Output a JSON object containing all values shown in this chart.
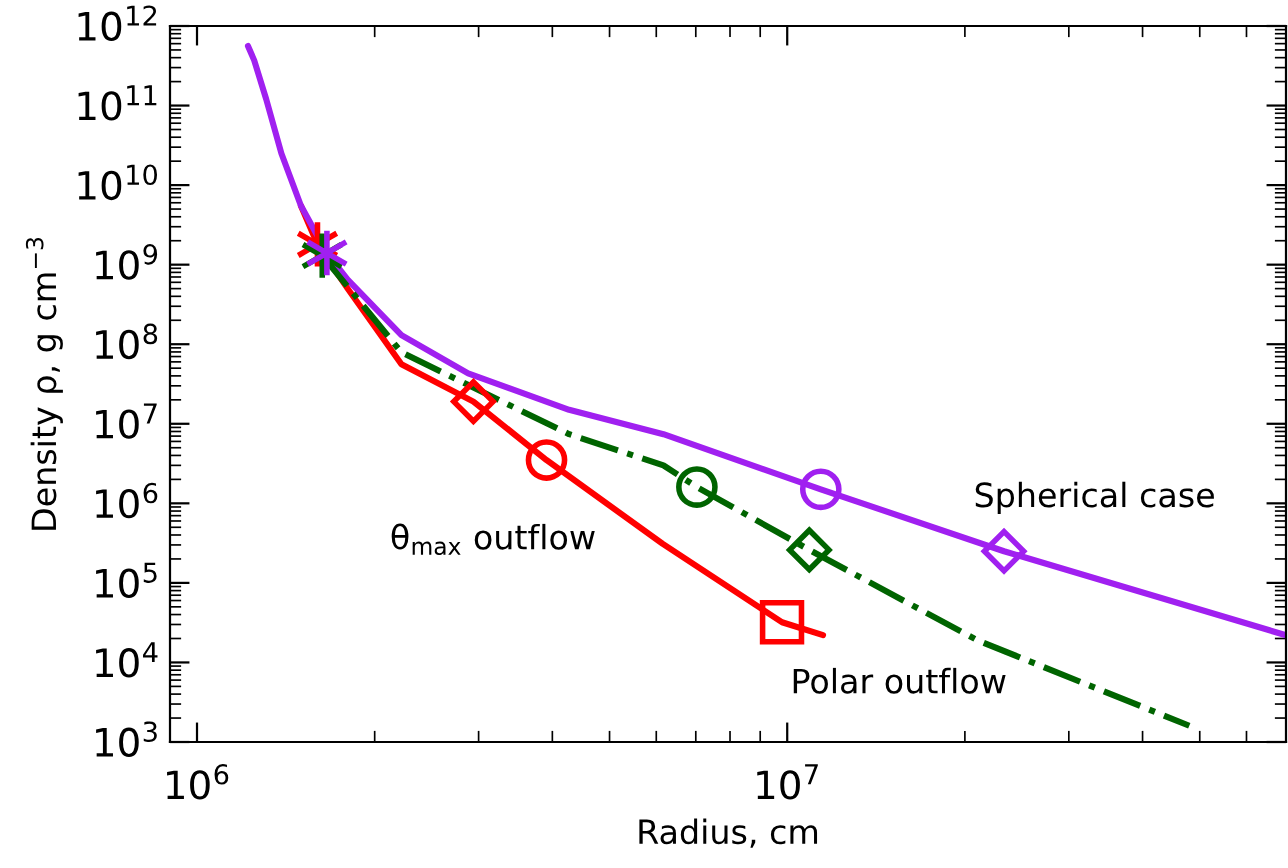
{
  "chart_data": {
    "type": "line",
    "xlabel": "Radius, cm",
    "ylabel": "Density ρ, g cm$^{−3}$",
    "log": "xy",
    "grid": false,
    "legend": false,
    "xlim": [
      900000,
      70000000
    ],
    "ylim": [
      1000,
      1000000000000
    ],
    "xticks": [
      {
        "value": 1000000,
        "label": "10$^{6}$"
      },
      {
        "value": 10000000,
        "label": "10$^{7}$"
      }
    ],
    "yticks": [
      {
        "value": 1000,
        "label": "10$^{3}$"
      },
      {
        "value": 10000,
        "label": "10$^{4}$"
      },
      {
        "value": 100000,
        "label": "10$^{5}$"
      },
      {
        "value": 1000000,
        "label": "10$^{6}$"
      },
      {
        "value": 10000000,
        "label": "10$^{7}$"
      },
      {
        "value": 100000000,
        "label": "10$^{8}$"
      },
      {
        "value": 1000000000,
        "label": "10$^{9}$"
      },
      {
        "value": 10000000000,
        "label": "10$^{10}$"
      },
      {
        "value": 100000000000,
        "label": "10$^{11}$"
      },
      {
        "value": 1000000000000,
        "label": "10$^{12}$"
      }
    ],
    "series": [
      {
        "name": "θ$_{max}$ outflow",
        "color": "#ff0000",
        "line_style": "solid",
        "marker": "none",
        "x": [
          1500000,
          1600000,
          1800000,
          2220000,
          2940000,
          3910000,
          6150000,
          9800000,
          11500000
        ],
        "values": [
          5500000000,
          1800000000,
          500000000,
          56000000,
          19000000,
          3500000,
          310000,
          32000,
          22000
        ]
      },
      {
        "name": "Spherical case",
        "color": "#a020f0",
        "line_style": "solid",
        "marker": "none",
        "x": [
          1220000,
          1250000,
          1310000,
          1390000,
          1500000,
          1660000,
          1800000,
          2220000,
          2880000,
          4270000,
          6170000,
          11400000,
          23300000,
          70000000
        ],
        "values": [
          560000000000,
          370000000000,
          120000000000,
          25000000000,
          5500000000,
          1400000000,
          650000000,
          130000000,
          43000000,
          15000000,
          7400000,
          1500000,
          250000,
          22000
        ]
      },
      {
        "name": "Polar outflow",
        "color": "#006400",
        "line_style": "dashdot",
        "marker": "none",
        "x": [
          1630000,
          2220000,
          4270000,
          6170000,
          7030000,
          10900000,
          21000000,
          48000000
        ],
        "values": [
          1300000000,
          79000000,
          7400000,
          3000000,
          1600000,
          260000,
          19000,
          1600
        ]
      },
      {
        "type": "scatter",
        "color": "#ff0000",
        "marker": "cross",
        "x": [
          1600000
        ],
        "values": [
          1800000000
        ]
      },
      {
        "type": "scatter",
        "color": "#006400",
        "marker": "cross",
        "x": [
          1630000
        ],
        "values": [
          1300000000
        ]
      },
      {
        "type": "scatter",
        "color": "#a020f0",
        "marker": "cross",
        "x": [
          1660000
        ],
        "values": [
          1400000000
        ]
      },
      {
        "type": "scatter",
        "color": "#ff0000",
        "marker": "diamond",
        "x": [
          2940000
        ],
        "values": [
          19000000
        ]
      },
      {
        "type": "scatter",
        "color": "#ff0000",
        "marker": "circle",
        "x": [
          3910000
        ],
        "values": [
          3500000
        ]
      },
      {
        "type": "scatter",
        "color": "#ff0000",
        "marker": "square",
        "x": [
          9800000
        ],
        "values": [
          32000
        ]
      },
      {
        "type": "scatter",
        "color": "#006400",
        "marker": "circle",
        "x": [
          7030000
        ],
        "values": [
          1600000
        ]
      },
      {
        "type": "scatter",
        "color": "#006400",
        "marker": "diamond",
        "x": [
          10900000
        ],
        "values": [
          260000
        ]
      },
      {
        "type": "scatter",
        "color": "#a020f0",
        "marker": "circle",
        "x": [
          11400000
        ],
        "values": [
          1500000
        ]
      },
      {
        "type": "scatter",
        "color": "#a020f0",
        "marker": "diamond",
        "x": [
          23300000
        ],
        "values": [
          250000
        ]
      }
    ]
  }
}
